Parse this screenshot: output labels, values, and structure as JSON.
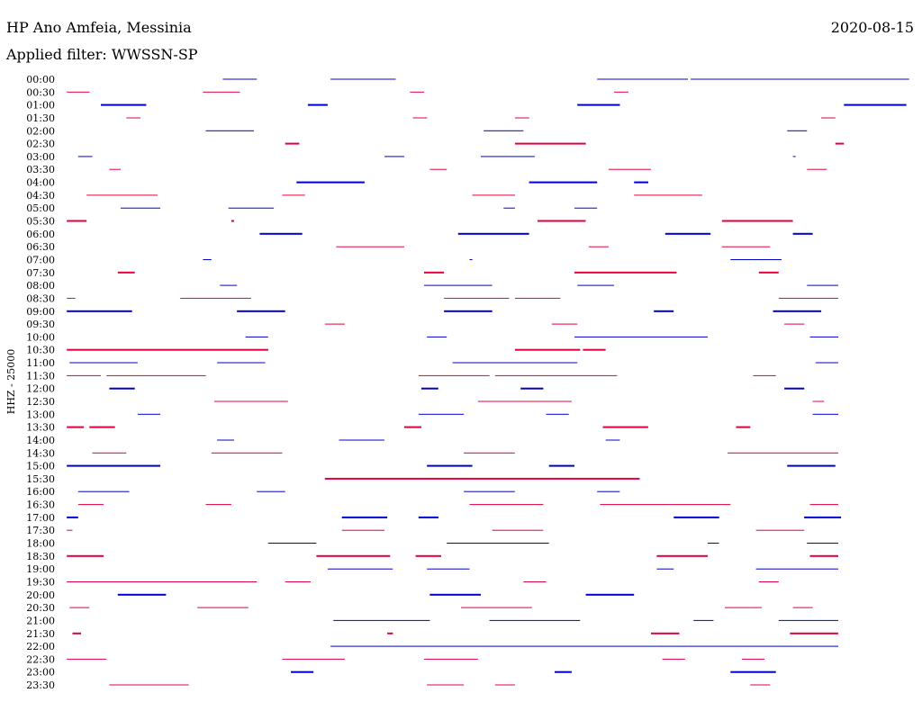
{
  "header": {
    "station": "HP Ano Amfeia, Messinia",
    "date": "2020-08-15",
    "filter": "Applied filter: WWSSN-SP"
  },
  "chart_data": {
    "type": "line",
    "title": "HP Ano Amfeia, Messinia",
    "ylabel": "HHZ - 25000",
    "xlim": [
      0,
      30
    ],
    "x_unit": "minutes",
    "colors": {
      "blue": "#0000cc",
      "red": "#e0003c"
    },
    "series": [
      {
        "label": "00:00",
        "color": "blue",
        "segments": [
          [
            5.6,
            6.8,
            1
          ],
          [
            9.4,
            11.7,
            1
          ],
          [
            18.8,
            22,
            1
          ],
          [
            22.1,
            29.8,
            1
          ]
        ]
      },
      {
        "label": "00:30",
        "color": "red",
        "segments": [
          [
            0.1,
            0.9,
            1
          ],
          [
            4.9,
            6.2,
            1
          ],
          [
            12.2,
            12.7,
            1
          ],
          [
            19.4,
            19.9,
            1
          ]
        ]
      },
      {
        "label": "01:00",
        "color": "blue",
        "segments": [
          [
            1.3,
            2.9,
            2
          ],
          [
            8.6,
            9.3,
            2
          ],
          [
            18.1,
            19.6,
            2
          ],
          [
            27.5,
            29.7,
            2
          ]
        ]
      },
      {
        "label": "01:30",
        "color": "red",
        "segments": [
          [
            2.2,
            2.7,
            1
          ],
          [
            12.3,
            12.8,
            1
          ],
          [
            15.9,
            16.4,
            1
          ],
          [
            26.7,
            27.2,
            1
          ]
        ]
      },
      {
        "label": "02:00",
        "color": "blue",
        "segments": [
          [
            5,
            6.7,
            1
          ],
          [
            14.8,
            16.2,
            1
          ],
          [
            25.5,
            26.2,
            1
          ]
        ]
      },
      {
        "label": "02:30",
        "color": "red",
        "segments": [
          [
            7.8,
            8.3,
            2
          ],
          [
            15.9,
            18.4,
            2
          ],
          [
            27.2,
            27.5,
            2
          ]
        ]
      },
      {
        "label": "03:00",
        "color": "blue",
        "segments": [
          [
            0.5,
            1,
            1
          ],
          [
            11.3,
            12,
            1
          ],
          [
            14.7,
            16.6,
            1
          ],
          [
            25.7,
            25.8,
            1
          ]
        ]
      },
      {
        "label": "03:30",
        "color": "red",
        "segments": [
          [
            1.6,
            2,
            1
          ],
          [
            12.9,
            13.5,
            1
          ],
          [
            19.2,
            20.7,
            1
          ],
          [
            26.2,
            26.9,
            1
          ]
        ]
      },
      {
        "label": "04:00",
        "color": "blue",
        "segments": [
          [
            8.2,
            10.6,
            2
          ],
          [
            16.4,
            18.8,
            2
          ],
          [
            20.1,
            20.6,
            2
          ]
        ]
      },
      {
        "label": "04:30",
        "color": "red",
        "segments": [
          [
            0.8,
            3.3,
            1
          ],
          [
            7.7,
            8.5,
            1
          ],
          [
            14.4,
            15.9,
            1
          ],
          [
            20.1,
            22.5,
            1
          ]
        ]
      },
      {
        "label": "05:00",
        "color": "blue",
        "segments": [
          [
            2,
            3.4,
            1
          ],
          [
            5.8,
            7.4,
            1
          ],
          [
            15.5,
            15.9,
            1
          ],
          [
            18,
            18.8,
            1
          ]
        ]
      },
      {
        "label": "05:30",
        "color": "red",
        "segments": [
          [
            0.1,
            0.8,
            2
          ],
          [
            5.9,
            6,
            2
          ],
          [
            16.7,
            18.4,
            2
          ],
          [
            23.2,
            25.7,
            2
          ]
        ]
      },
      {
        "label": "06:00",
        "color": "blue",
        "segments": [
          [
            6.9,
            8.4,
            2
          ],
          [
            13.9,
            16.4,
            2
          ],
          [
            21.2,
            22.8,
            2
          ],
          [
            25.7,
            26.4,
            2
          ]
        ]
      },
      {
        "label": "06:30",
        "color": "red",
        "segments": [
          [
            9.6,
            12,
            1
          ],
          [
            18.5,
            19.2,
            1
          ],
          [
            23.2,
            24.9,
            1
          ]
        ]
      },
      {
        "label": "07:00",
        "color": "blue",
        "segments": [
          [
            4.9,
            5.2,
            1
          ],
          [
            14.3,
            14.4,
            1
          ],
          [
            23.5,
            25.3,
            1
          ]
        ]
      },
      {
        "label": "07:30",
        "color": "red",
        "segments": [
          [
            1.9,
            2.5,
            2
          ],
          [
            12.7,
            13.4,
            2
          ],
          [
            18,
            21.6,
            2
          ],
          [
            24.5,
            25.2,
            2
          ]
        ]
      },
      {
        "label": "08:00",
        "color": "blue",
        "segments": [
          [
            5.5,
            6.1,
            1
          ],
          [
            12.7,
            15.1,
            1
          ],
          [
            18.1,
            19.4,
            1
          ],
          [
            26.2,
            27.3,
            1
          ]
        ]
      },
      {
        "label": "08:30",
        "color": "red",
        "segments": [
          [
            0.1,
            0.4,
            1
          ],
          [
            4.1,
            6.6,
            1
          ],
          [
            13.4,
            15.7,
            1
          ],
          [
            15.9,
            17.5,
            1
          ],
          [
            25.2,
            27.3,
            1
          ]
        ]
      },
      {
        "label": "09:00",
        "color": "blue",
        "segments": [
          [
            0.1,
            2.4,
            2
          ],
          [
            6.1,
            7.8,
            2
          ],
          [
            13.4,
            15.1,
            2
          ],
          [
            20.8,
            21.5,
            2
          ],
          [
            25,
            26.7,
            2
          ]
        ]
      },
      {
        "label": "09:30",
        "color": "red",
        "segments": [
          [
            9.2,
            9.9,
            1
          ],
          [
            17.2,
            18.1,
            1
          ],
          [
            25.4,
            26.1,
            1
          ]
        ]
      },
      {
        "label": "10:00",
        "color": "blue",
        "segments": [
          [
            6.4,
            7.2,
            1
          ],
          [
            12.8,
            13.5,
            1
          ],
          [
            18,
            22.7,
            1
          ],
          [
            26.3,
            27.3,
            1
          ]
        ]
      },
      {
        "label": "10:30",
        "color": "red",
        "segments": [
          [
            0.1,
            7.2,
            2
          ],
          [
            15.9,
            18.2,
            2
          ],
          [
            18.3,
            19.1,
            2
          ]
        ]
      },
      {
        "label": "11:00",
        "color": "blue",
        "segments": [
          [
            0.2,
            2.6,
            1
          ],
          [
            5.4,
            7.1,
            1
          ],
          [
            13.7,
            18.1,
            1
          ],
          [
            26.5,
            27.3,
            1
          ]
        ]
      },
      {
        "label": "11:30",
        "color": "red",
        "segments": [
          [
            0.1,
            1.3,
            1
          ],
          [
            1.5,
            5,
            1
          ],
          [
            12.5,
            15,
            1
          ],
          [
            15.2,
            19.5,
            1
          ],
          [
            24.3,
            25.1,
            1
          ]
        ]
      },
      {
        "label": "12:00",
        "color": "blue",
        "segments": [
          [
            1.6,
            2.5,
            2
          ],
          [
            12.6,
            13.2,
            2
          ],
          [
            16.1,
            16.9,
            2
          ],
          [
            25.4,
            26.1,
            2
          ]
        ]
      },
      {
        "label": "12:30",
        "color": "red",
        "segments": [
          [
            5.3,
            7.9,
            1
          ],
          [
            14.6,
            17.9,
            1
          ],
          [
            26.4,
            26.8,
            1
          ]
        ]
      },
      {
        "label": "13:00",
        "color": "blue",
        "segments": [
          [
            2.6,
            3.4,
            1
          ],
          [
            12.5,
            14.1,
            1
          ],
          [
            17,
            17.8,
            1
          ],
          [
            26.4,
            27.3,
            1
          ]
        ]
      },
      {
        "label": "13:30",
        "color": "red",
        "segments": [
          [
            0.1,
            0.7,
            2
          ],
          [
            0.9,
            1.8,
            2
          ],
          [
            12,
            12.6,
            2
          ],
          [
            19,
            20.6,
            2
          ],
          [
            23.7,
            24.2,
            2
          ]
        ]
      },
      {
        "label": "14:00",
        "color": "blue",
        "segments": [
          [
            5.4,
            6,
            1
          ],
          [
            9.7,
            11.3,
            1
          ],
          [
            19.1,
            19.6,
            1
          ]
        ]
      },
      {
        "label": "14:30",
        "color": "red",
        "segments": [
          [
            1,
            2.2,
            1
          ],
          [
            5.2,
            7.7,
            1
          ],
          [
            14.1,
            15.9,
            1
          ],
          [
            23.4,
            27.3,
            1
          ]
        ]
      },
      {
        "label": "15:00",
        "color": "blue",
        "segments": [
          [
            0.1,
            3.4,
            2
          ],
          [
            12.8,
            14.4,
            2
          ],
          [
            17.1,
            18,
            2
          ],
          [
            25.5,
            27.2,
            2
          ]
        ]
      },
      {
        "label": "15:30",
        "color": "red",
        "segments": [
          [
            9.2,
            20.3,
            2
          ]
        ]
      },
      {
        "label": "16:00",
        "color": "blue",
        "segments": [
          [
            0.5,
            2.3,
            1
          ],
          [
            6.8,
            7.8,
            1
          ],
          [
            14.1,
            15.9,
            1
          ],
          [
            18.8,
            19.6,
            1
          ]
        ]
      },
      {
        "label": "16:30",
        "color": "red",
        "segments": [
          [
            0.5,
            1.4,
            1
          ],
          [
            5,
            5.9,
            1
          ],
          [
            14.3,
            16.9,
            1
          ],
          [
            18.9,
            23.5,
            1
          ],
          [
            26.3,
            27.3,
            1
          ]
        ]
      },
      {
        "label": "17:00",
        "color": "blue",
        "segments": [
          [
            0.1,
            0.5,
            2
          ],
          [
            9.8,
            11.4,
            2
          ],
          [
            12.5,
            13.2,
            2
          ],
          [
            21.5,
            23.1,
            2
          ],
          [
            26.1,
            27.4,
            2
          ]
        ]
      },
      {
        "label": "17:30",
        "color": "red",
        "segments": [
          [
            0.1,
            0.3,
            1
          ],
          [
            9.8,
            11.3,
            1
          ],
          [
            15.1,
            16.9,
            1
          ],
          [
            24.4,
            26.1,
            1
          ]
        ]
      },
      {
        "label": "18:00",
        "color": "blue",
        "segments": [
          [
            7.2,
            8.9,
            1
          ],
          [
            13.5,
            17.1,
            1
          ],
          [
            22.7,
            23.1,
            1
          ],
          [
            26.2,
            27.3,
            1
          ]
        ]
      },
      {
        "label": "18:30",
        "color": "red",
        "segments": [
          [
            0.1,
            1.4,
            2
          ],
          [
            8.9,
            11.5,
            2
          ],
          [
            12.4,
            13.3,
            2
          ],
          [
            20.9,
            22.7,
            2
          ],
          [
            26.3,
            27.3,
            2
          ]
        ]
      },
      {
        "label": "19:00",
        "color": "blue",
        "segments": [
          [
            9.3,
            11.6,
            1
          ],
          [
            12.8,
            14.3,
            1
          ],
          [
            20.9,
            21.5,
            1
          ],
          [
            24.4,
            27.3,
            1
          ]
        ]
      },
      {
        "label": "19:30",
        "color": "red",
        "segments": [
          [
            0.1,
            6.8,
            1
          ],
          [
            7.8,
            8.7,
            1
          ],
          [
            16.2,
            17,
            1
          ],
          [
            24.5,
            25.2,
            1
          ]
        ]
      },
      {
        "label": "20:00",
        "color": "blue",
        "segments": [
          [
            1.9,
            3.6,
            2
          ],
          [
            12.9,
            14.7,
            2
          ],
          [
            18.4,
            20.1,
            2
          ]
        ]
      },
      {
        "label": "20:30",
        "color": "red",
        "segments": [
          [
            0.2,
            0.9,
            1
          ],
          [
            4.7,
            6.5,
            1
          ],
          [
            14,
            16.5,
            1
          ],
          [
            23.3,
            24.6,
            1
          ],
          [
            25.7,
            26.4,
            1
          ]
        ]
      },
      {
        "label": "21:00",
        "color": "blue",
        "segments": [
          [
            9.5,
            12.9,
            1
          ],
          [
            15,
            18.2,
            1
          ],
          [
            22.2,
            22.9,
            1
          ],
          [
            25.2,
            27.3,
            1
          ]
        ]
      },
      {
        "label": "21:30",
        "color": "red",
        "segments": [
          [
            0.3,
            0.6,
            2
          ],
          [
            11.4,
            11.6,
            2
          ],
          [
            20.7,
            21.7,
            2
          ],
          [
            25.6,
            27.3,
            2
          ]
        ]
      },
      {
        "label": "22:00",
        "color": "blue",
        "segments": [
          [
            9.4,
            27.3,
            1
          ]
        ]
      },
      {
        "label": "22:30",
        "color": "red",
        "segments": [
          [
            0.1,
            1.5,
            1
          ],
          [
            7.7,
            9.9,
            1
          ],
          [
            12.7,
            14.6,
            1
          ],
          [
            21.1,
            21.9,
            1
          ],
          [
            23.9,
            24.7,
            1
          ]
        ]
      },
      {
        "label": "23:00",
        "color": "blue",
        "segments": [
          [
            8,
            8.8,
            2
          ],
          [
            17.3,
            17.9,
            2
          ],
          [
            23.5,
            25.1,
            2
          ]
        ]
      },
      {
        "label": "23:30",
        "color": "red",
        "segments": [
          [
            1.6,
            4.4,
            1
          ],
          [
            12.8,
            14.1,
            1
          ],
          [
            15.2,
            15.9,
            1
          ],
          [
            24.2,
            24.9,
            1
          ]
        ]
      }
    ]
  }
}
